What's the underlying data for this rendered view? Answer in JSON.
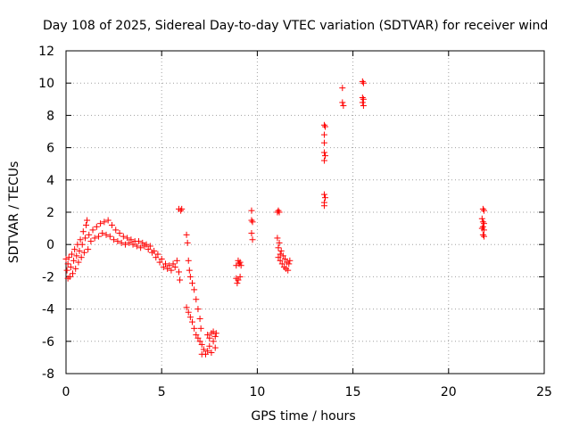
{
  "chart_data": {
    "type": "scatter",
    "title": "Day 108 of 2025, Sidereal Day-to-day VTEC variation (SDTVAR) for receiver wind",
    "xlabel": "GPS time / hours",
    "ylabel": "SDTVAR / TECUs",
    "xlim": [
      0,
      25
    ],
    "ylim": [
      -8,
      12
    ],
    "xticks": [
      0,
      5,
      10,
      15,
      20,
      25
    ],
    "yticks": [
      -8,
      -6,
      -4,
      -2,
      0,
      2,
      4,
      6,
      8,
      10,
      12
    ],
    "xtick_labels": [
      "0",
      "5",
      "10",
      "15",
      "20",
      "25"
    ],
    "ytick_labels": [
      "-8",
      "-6",
      "-4",
      "-2",
      "0",
      "2",
      "4",
      "6",
      "8",
      "10",
      "12"
    ],
    "grid": true,
    "marker": "+",
    "color": "#ff0000",
    "series": [
      {
        "name": "SDTVAR",
        "points": [
          [
            0.0,
            -0.9
          ],
          [
            0.05,
            -1.6
          ],
          [
            0.1,
            -2.1
          ],
          [
            0.1,
            -1.2
          ],
          [
            0.15,
            -0.8
          ],
          [
            0.2,
            -2.0
          ],
          [
            0.25,
            -1.4
          ],
          [
            0.3,
            -0.6
          ],
          [
            0.35,
            -1.8
          ],
          [
            0.4,
            -1.0
          ],
          [
            0.45,
            -0.3
          ],
          [
            0.5,
            -1.5
          ],
          [
            0.55,
            -0.7
          ],
          [
            0.6,
            0.0
          ],
          [
            0.65,
            -1.1
          ],
          [
            0.7,
            -0.4
          ],
          [
            0.75,
            0.3
          ],
          [
            0.8,
            -0.8
          ],
          [
            0.85,
            0.0
          ],
          [
            0.9,
            0.8
          ],
          [
            0.95,
            -0.5
          ],
          [
            1.0,
            0.4
          ],
          [
            1.05,
            1.2
          ],
          [
            1.1,
            1.5
          ],
          [
            1.15,
            -0.3
          ],
          [
            1.2,
            0.6
          ],
          [
            1.3,
            0.2
          ],
          [
            1.4,
            0.9
          ],
          [
            1.5,
            0.4
          ],
          [
            1.6,
            1.1
          ],
          [
            1.7,
            0.5
          ],
          [
            1.8,
            1.3
          ],
          [
            1.9,
            0.7
          ],
          [
            2.0,
            1.4
          ],
          [
            2.1,
            0.6
          ],
          [
            2.2,
            1.5
          ],
          [
            2.3,
            0.5
          ],
          [
            2.4,
            1.2
          ],
          [
            2.5,
            0.3
          ],
          [
            2.6,
            0.9
          ],
          [
            2.7,
            0.2
          ],
          [
            2.8,
            0.7
          ],
          [
            2.9,
            0.1
          ],
          [
            3.0,
            0.5
          ],
          [
            3.1,
            0.0
          ],
          [
            3.2,
            0.4
          ],
          [
            3.3,
            0.1
          ],
          [
            3.4,
            0.3
          ],
          [
            3.5,
            0.0
          ],
          [
            3.6,
            0.2
          ],
          [
            3.7,
            -0.1
          ],
          [
            3.8,
            0.2
          ],
          [
            3.9,
            -0.2
          ],
          [
            4.0,
            0.1
          ],
          [
            4.1,
            -0.1
          ],
          [
            4.2,
            0.0
          ],
          [
            4.3,
            -0.3
          ],
          [
            4.4,
            -0.1
          ],
          [
            4.5,
            -0.5
          ],
          [
            4.6,
            -0.4
          ],
          [
            4.7,
            -0.8
          ],
          [
            4.8,
            -0.6
          ],
          [
            4.9,
            -1.1
          ],
          [
            5.0,
            -0.9
          ],
          [
            5.1,
            -1.4
          ],
          [
            5.2,
            -1.2
          ],
          [
            5.3,
            -1.5
          ],
          [
            5.4,
            -1.3
          ],
          [
            5.5,
            -1.6
          ],
          [
            5.6,
            -1.2
          ],
          [
            5.7,
            -1.4
          ],
          [
            5.8,
            -1.0
          ],
          [
            5.9,
            -1.7
          ],
          [
            5.95,
            -2.2
          ],
          [
            5.9,
            2.2
          ],
          [
            6.0,
            2.1
          ],
          [
            6.05,
            2.2
          ],
          [
            6.3,
            0.6
          ],
          [
            6.3,
            -3.9
          ],
          [
            6.35,
            0.1
          ],
          [
            6.4,
            -1.0
          ],
          [
            6.4,
            -4.2
          ],
          [
            6.45,
            -1.6
          ],
          [
            6.5,
            -4.5
          ],
          [
            6.5,
            -2.0
          ],
          [
            6.6,
            -2.4
          ],
          [
            6.6,
            -4.8
          ],
          [
            6.7,
            -2.8
          ],
          [
            6.7,
            -5.2
          ],
          [
            6.8,
            -3.4
          ],
          [
            6.8,
            -5.6
          ],
          [
            6.9,
            -4.0
          ],
          [
            6.9,
            -5.8
          ],
          [
            7.0,
            -4.6
          ],
          [
            7.0,
            -6.0
          ],
          [
            7.05,
            -5.2
          ],
          [
            7.1,
            -6.2
          ],
          [
            7.1,
            -6.8
          ],
          [
            7.2,
            -6.5
          ],
          [
            7.3,
            -6.8
          ],
          [
            7.4,
            -5.6
          ],
          [
            7.4,
            -6.6
          ],
          [
            7.5,
            -6.3
          ],
          [
            7.5,
            -5.8
          ],
          [
            7.6,
            -5.5
          ],
          [
            7.6,
            -6.7
          ],
          [
            7.7,
            -6.0
          ],
          [
            7.7,
            -5.4
          ],
          [
            7.8,
            -6.4
          ],
          [
            7.8,
            -5.7
          ],
          [
            7.85,
            -5.5
          ],
          [
            8.9,
            -1.3
          ],
          [
            8.9,
            -2.1
          ],
          [
            8.95,
            -2.4
          ],
          [
            9.0,
            -1.0
          ],
          [
            9.0,
            -2.2
          ],
          [
            9.05,
            -1.2
          ],
          [
            9.1,
            -2.0
          ],
          [
            9.1,
            -1.1
          ],
          [
            9.15,
            -1.3
          ],
          [
            9.7,
            2.1
          ],
          [
            9.7,
            1.5
          ],
          [
            9.75,
            1.4
          ],
          [
            9.7,
            0.7
          ],
          [
            9.75,
            0.3
          ],
          [
            11.05,
            2.0
          ],
          [
            11.1,
            2.1
          ],
          [
            11.15,
            2.0
          ],
          [
            11.05,
            0.4
          ],
          [
            11.1,
            -0.2
          ],
          [
            11.1,
            -0.8
          ],
          [
            11.15,
            0.1
          ],
          [
            11.2,
            -0.6
          ],
          [
            11.2,
            -1.0
          ],
          [
            11.25,
            -0.4
          ],
          [
            11.3,
            -1.2
          ],
          [
            11.35,
            -0.7
          ],
          [
            11.4,
            -1.4
          ],
          [
            11.45,
            -0.9
          ],
          [
            11.5,
            -1.5
          ],
          [
            11.55,
            -1.1
          ],
          [
            11.6,
            -1.6
          ],
          [
            11.65,
            -1.2
          ],
          [
            11.7,
            -1.0
          ],
          [
            13.5,
            7.4
          ],
          [
            13.55,
            7.3
          ],
          [
            13.5,
            6.8
          ],
          [
            13.5,
            6.3
          ],
          [
            13.5,
            5.7
          ],
          [
            13.55,
            5.5
          ],
          [
            13.5,
            5.2
          ],
          [
            13.5,
            3.1
          ],
          [
            13.55,
            2.9
          ],
          [
            13.5,
            2.6
          ],
          [
            13.5,
            2.4
          ],
          [
            14.45,
            9.7
          ],
          [
            14.45,
            8.8
          ],
          [
            14.5,
            8.6
          ],
          [
            15.5,
            10.1
          ],
          [
            15.55,
            10.0
          ],
          [
            15.5,
            9.1
          ],
          [
            15.55,
            9.0
          ],
          [
            15.5,
            8.8
          ],
          [
            15.55,
            8.6
          ],
          [
            21.8,
            2.2
          ],
          [
            21.85,
            2.1
          ],
          [
            21.75,
            1.6
          ],
          [
            21.8,
            1.4
          ],
          [
            21.85,
            1.3
          ],
          [
            21.8,
            1.1
          ],
          [
            21.75,
            1.0
          ],
          [
            21.85,
            0.9
          ],
          [
            21.8,
            0.6
          ],
          [
            21.85,
            0.5
          ]
        ]
      }
    ]
  }
}
